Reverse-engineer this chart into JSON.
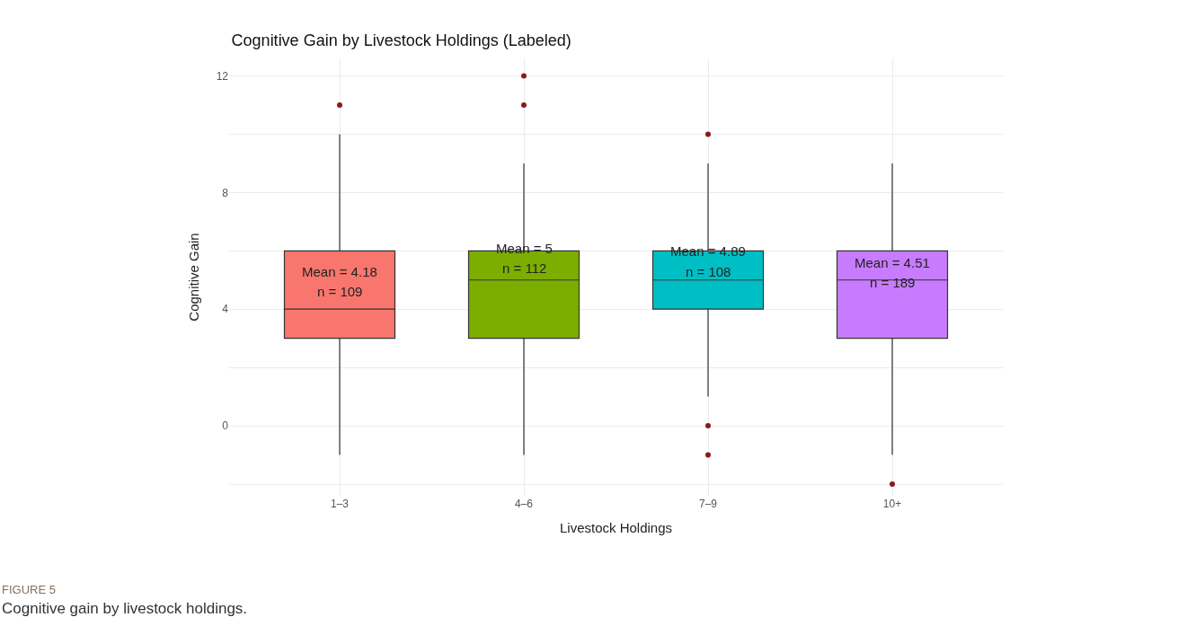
{
  "chart_data": {
    "type": "box",
    "title": "Cognitive Gain by Livestock Holdings (Labeled)",
    "xlabel": "Livestock Holdings",
    "ylabel": "Cognitive Gain",
    "categories": [
      "1–3",
      "4–6",
      "7–9",
      "10+"
    ],
    "colors": [
      "#f8766d",
      "#7cae00",
      "#00bfc4",
      "#c77cff"
    ],
    "boxes": [
      {
        "low": -1,
        "q1": 3,
        "median": 4,
        "q3": 6,
        "high": 10,
        "outliers": [
          11
        ]
      },
      {
        "low": -1,
        "q1": 3,
        "median": 5,
        "q3": 6,
        "high": 9,
        "outliers": [
          11,
          12
        ]
      },
      {
        "low": 1,
        "q1": 4,
        "median": 5,
        "q3": 6,
        "high": 9,
        "outliers": [
          10,
          0,
          -1
        ]
      },
      {
        "low": -1,
        "q1": 3,
        "median": 5,
        "q3": 6,
        "high": 9,
        "outliers": [
          -2
        ]
      }
    ],
    "ylim": [
      -2.4,
      12.6
    ],
    "yticks": [
      {
        "value": -2,
        "label": null
      },
      0,
      {
        "value": 2,
        "label": null
      },
      4,
      {
        "value": 6,
        "label": null
      },
      8,
      {
        "value": 10,
        "label": null
      },
      12
    ],
    "grid": true,
    "annotations": [
      "Mean = 4.18",
      "n = 109",
      "Mean = 5",
      "n = 112",
      "Mean = 4.89",
      "n = 108",
      "Mean = 4.51",
      "n = 189",
      "FIGURE 5",
      "Cognitive gain by livestock holdings."
    ]
  }
}
